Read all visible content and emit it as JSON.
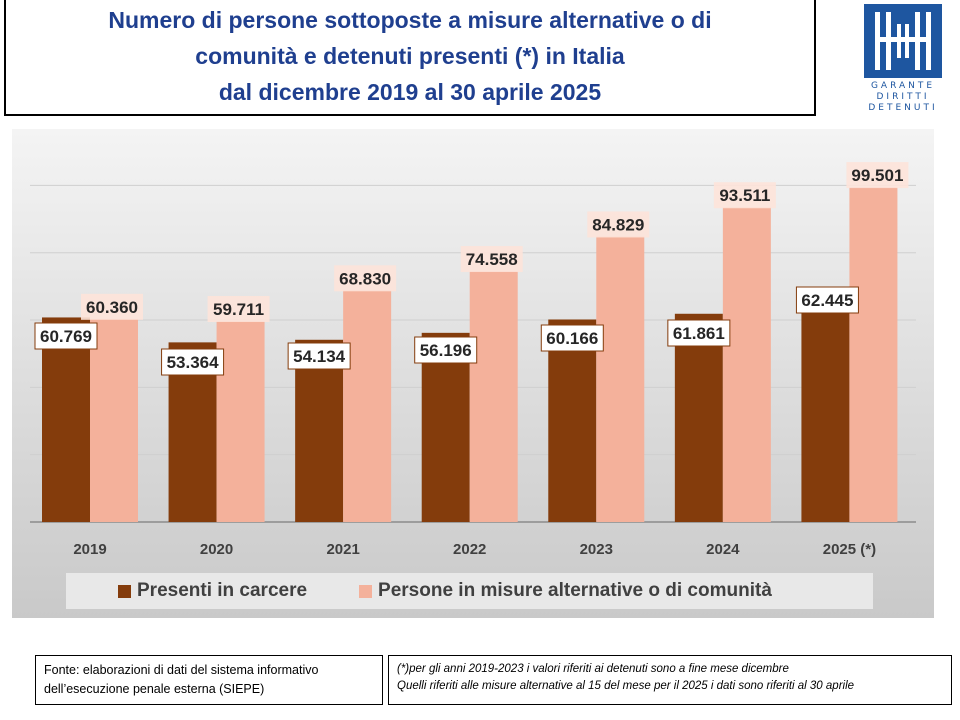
{
  "title": {
    "line1": "Numero di persone sottoposte a misure alternative o di",
    "line2": "comunità  e detenuti presenti (*) in Italia",
    "line3": "dal dicembre 2019 al 30 aprile 2025"
  },
  "logo": {
    "text_line1": "GARANTE",
    "text_line2": "DIRITTI",
    "text_line3": "DETENUTI",
    "color": "#1e56a0"
  },
  "chart_data": {
    "type": "bar",
    "categories": [
      "2019",
      "2020",
      "2021",
      "2022",
      "2023",
      "2024",
      "2025 (*)"
    ],
    "series": [
      {
        "name": "Presenti in carcere",
        "color": "#843c0c",
        "values": [
          60769,
          53364,
          54134,
          56196,
          60166,
          61861,
          62445
        ],
        "labels": [
          "60.769",
          "53.364",
          "54.134",
          "56.196",
          "60.166",
          "61.861",
          "62.445"
        ]
      },
      {
        "name": "Persone in misure alternative o di comunità",
        "color": "#f4b19b",
        "values": [
          60360,
          59711,
          68830,
          74558,
          84829,
          93511,
          99501
        ],
        "labels": [
          "60.360",
          "59.711",
          "68.830",
          "74.558",
          "84.829",
          "93.511",
          "99.501"
        ]
      }
    ],
    "ylim": [
      0,
      112000
    ],
    "grid": true,
    "legend": "bottom"
  },
  "notes": {
    "source_line1": "Fonte: elaborazioni di dati del sistema informativo",
    "source_line2": "dell’esecuzione penale esterna (SIEPE)",
    "footnote_line1": "(*)per gli anni 2019-2023  i valori riferiti ai detenuti sono a fine mese dicembre",
    "footnote_line2": "Quelli riferiti alle misure alternative al 15 del mese per il 2025  i dati sono riferiti al 30 aprile"
  }
}
